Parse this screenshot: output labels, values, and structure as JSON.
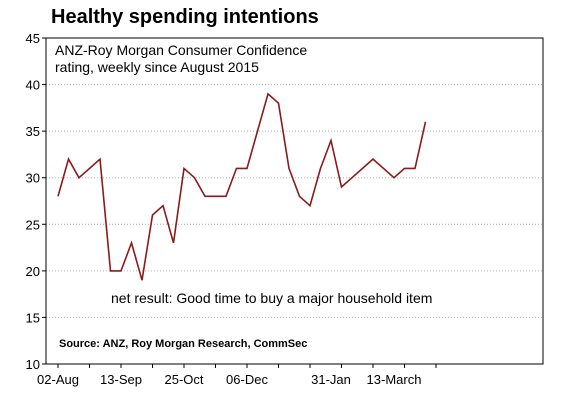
{
  "title": "Healthy spending intentions",
  "colors": {
    "line": "#8b1a1a",
    "grid": "#b0b0b0",
    "axis": "#000000"
  },
  "chart_data": {
    "type": "line",
    "title": "Healthy spending intentions",
    "subtitle_lines": [
      "ANZ-Roy Morgan Consumer Confidence",
      "rating, weekly since August 2015"
    ],
    "annotation": "net result: Good time to buy a major household item",
    "source": "Source: ANZ, Roy Morgan Research, CommSec",
    "xlabel": "",
    "ylabel": "",
    "ylim": [
      10,
      45
    ],
    "yticks": [
      10,
      15,
      20,
      25,
      30,
      35,
      40,
      45
    ],
    "grid": "horizontal dotted",
    "x_tick_labels": [
      "02-Aug",
      "13-Sep",
      "25-Oct",
      "06-Dec",
      "31-Jan",
      "13-March"
    ],
    "x_tick_week_index": [
      0,
      6,
      12,
      18,
      26,
      32
    ],
    "series": [
      {
        "week_index": [
          0,
          1,
          2,
          4,
          5,
          6,
          7,
          8,
          9,
          10,
          11,
          12,
          13,
          14,
          15,
          16,
          17,
          18,
          19,
          20,
          21,
          22,
          23,
          24,
          25,
          26,
          27,
          28,
          30,
          32,
          33,
          34,
          35
        ],
        "values": [
          28,
          32,
          30,
          32,
          20,
          20,
          23,
          19,
          26,
          27,
          23,
          31,
          30,
          28,
          28,
          28,
          31,
          31,
          35,
          39,
          38,
          31,
          28,
          27,
          31,
          34,
          29,
          30,
          32,
          30,
          31,
          31,
          36
        ]
      }
    ]
  }
}
